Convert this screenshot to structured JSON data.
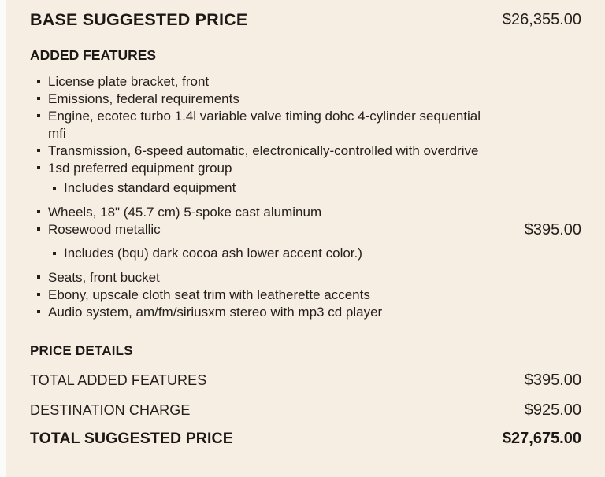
{
  "page": {
    "colors": {
      "background": "#f7eee3",
      "left_strip": "#fbfbfa",
      "text": "#241f1c"
    }
  },
  "header": {
    "title": "BASE SUGGESTED PRICE",
    "price": "$26,355.00"
  },
  "added_features": {
    "heading": "ADDED FEATURES",
    "items": [
      {
        "text": "License plate bracket, front"
      },
      {
        "text": "Emissions, federal requirements"
      },
      {
        "text": "Engine, ecotec turbo 1.4l variable valve timing dohc 4-cylinder sequential mfi"
      },
      {
        "text": "Transmission, 6-speed automatic, electronically-controlled with overdrive"
      },
      {
        "text": "1sd preferred equipment group",
        "sub_items": [
          "Includes standard equipment"
        ]
      },
      {
        "text": "Wheels, 18\" (45.7 cm) 5-spoke cast aluminum"
      },
      {
        "text": "Rosewood metallic",
        "price": "$395.00",
        "sub_items": [
          "Includes (bqu) dark cocoa ash lower accent color.)"
        ]
      },
      {
        "text": "Seats, front bucket"
      },
      {
        "text": "Ebony, upscale cloth seat trim with leatherette accents"
      },
      {
        "text": "Audio system, am/fm/siriusxm stereo with mp3 cd player"
      }
    ]
  },
  "price_details": {
    "heading": "PRICE DETAILS",
    "rows": [
      {
        "label": "TOTAL ADDED FEATURES",
        "value": "$395.00",
        "bold": false
      },
      {
        "label": "DESTINATION CHARGE",
        "value": "$925.00",
        "bold": false
      },
      {
        "label": "TOTAL SUGGESTED PRICE",
        "value": "$27,675.00",
        "bold": true
      }
    ]
  }
}
